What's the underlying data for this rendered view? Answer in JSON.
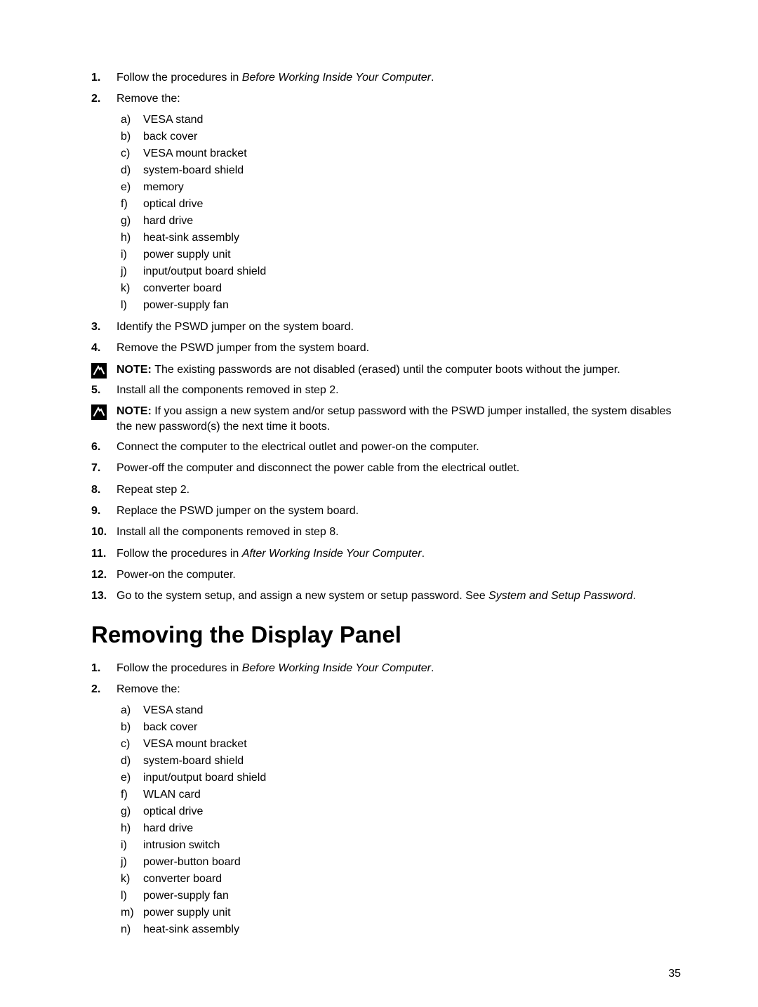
{
  "list1": {
    "items": [
      {
        "n": "1.",
        "text_a": "Follow the procedures in ",
        "italic": "Before Working Inside Your Computer",
        "text_b": "."
      },
      {
        "n": "2.",
        "text_a": "Remove the:",
        "sub": [
          {
            "l": "a)",
            "t": "VESA stand"
          },
          {
            "l": "b)",
            "t": "back cover"
          },
          {
            "l": "c)",
            "t": "VESA mount bracket"
          },
          {
            "l": "d)",
            "t": "system-board shield"
          },
          {
            "l": "e)",
            "t": "memory"
          },
          {
            "l": "f)",
            "t": "optical drive"
          },
          {
            "l": "g)",
            "t": "hard drive"
          },
          {
            "l": "h)",
            "t": "heat-sink assembly"
          },
          {
            "l": "i)",
            "t": "power supply unit"
          },
          {
            "l": "j)",
            "t": "input/output board shield"
          },
          {
            "l": "k)",
            "t": "converter board"
          },
          {
            "l": "l)",
            "t": "power-supply fan"
          }
        ]
      },
      {
        "n": "3.",
        "text_a": "Identify the PSWD jumper on the system board."
      },
      {
        "n": "4.",
        "text_a": "Remove the PSWD jumper from the system board."
      }
    ]
  },
  "note1": {
    "label": "NOTE: ",
    "text": "The existing passwords are not disabled (erased) until the computer boots without the jumper."
  },
  "list1b": {
    "items": [
      {
        "n": "5.",
        "text_a": "Install all the components removed in step 2."
      }
    ]
  },
  "note2": {
    "label": "NOTE: ",
    "text": "If you assign a new system and/or setup password with the PSWD jumper installed, the system disables the new password(s) the next time it boots."
  },
  "list1c": {
    "items": [
      {
        "n": "6.",
        "text_a": "Connect the computer to the electrical outlet and power-on the computer."
      },
      {
        "n": "7.",
        "text_a": "Power-off the computer and disconnect the power cable from the electrical outlet."
      },
      {
        "n": "8.",
        "text_a": "Repeat step 2."
      },
      {
        "n": "9.",
        "text_a": "Replace the PSWD jumper on the system board."
      },
      {
        "n": "10.",
        "text_a": "Install all the components removed in step 8."
      },
      {
        "n": "11.",
        "text_a": "Follow the procedures in ",
        "italic": "After Working Inside Your Computer",
        "text_b": "."
      },
      {
        "n": "12.",
        "text_a": "Power-on the computer."
      },
      {
        "n": "13.",
        "text_a": "Go to the system setup, and assign a new system or setup password. See ",
        "italic": "System and Setup Password",
        "text_b": "."
      }
    ]
  },
  "heading": "Removing the Display Panel",
  "list2": {
    "items": [
      {
        "n": "1.",
        "text_a": "Follow the procedures in ",
        "italic": "Before Working Inside Your Computer",
        "text_b": "."
      },
      {
        "n": "2.",
        "text_a": "Remove the:",
        "sub": [
          {
            "l": "a)",
            "t": "VESA stand"
          },
          {
            "l": "b)",
            "t": "back cover"
          },
          {
            "l": "c)",
            "t": "VESA mount bracket"
          },
          {
            "l": "d)",
            "t": "system-board shield"
          },
          {
            "l": "e)",
            "t": "input/output board shield"
          },
          {
            "l": "f)",
            "t": "WLAN card"
          },
          {
            "l": "g)",
            "t": "optical drive"
          },
          {
            "l": "h)",
            "t": "hard drive"
          },
          {
            "l": "i)",
            "t": "intrusion switch"
          },
          {
            "l": "j)",
            "t": "power-button board"
          },
          {
            "l": "k)",
            "t": "converter board"
          },
          {
            "l": "l)",
            "t": "power-supply fan"
          },
          {
            "l": "m)",
            "t": "power supply unit"
          },
          {
            "l": "n)",
            "t": "heat-sink assembly"
          }
        ]
      }
    ]
  },
  "pagenum": "35",
  "icon": {
    "bg": "#000000",
    "fg": "#ffffff"
  }
}
